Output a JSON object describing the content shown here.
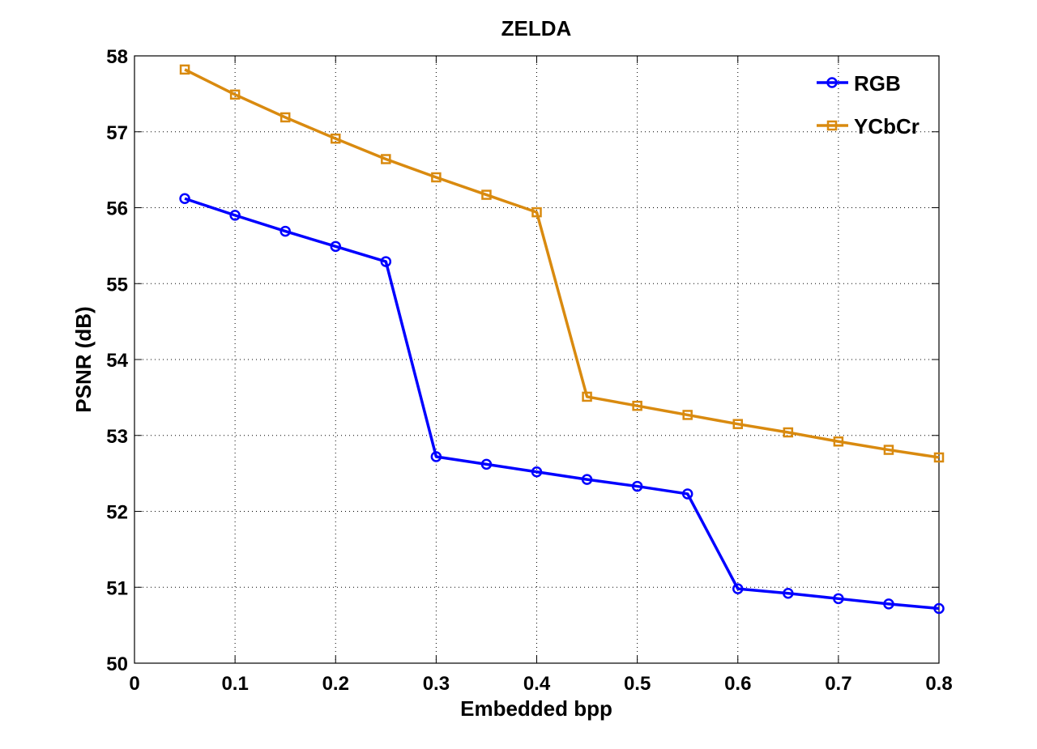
{
  "chart_data": {
    "type": "line",
    "title": "ZELDA",
    "xlabel": "Embedded bpp",
    "ylabel": "PSNR (dB)",
    "xlim": [
      0,
      0.8
    ],
    "ylim": [
      50,
      58
    ],
    "xticks": [
      "0",
      "0.1",
      "0.2",
      "0.3",
      "0.4",
      "0.5",
      "0.6",
      "0.7",
      "0.8"
    ],
    "yticks": [
      "50",
      "51",
      "52",
      "53",
      "54",
      "55",
      "56",
      "57",
      "58"
    ],
    "grid": true,
    "legend_position": "top-right",
    "x": [
      0.05,
      0.1,
      0.15,
      0.2,
      0.25,
      0.3,
      0.35,
      0.4,
      0.45,
      0.5,
      0.55,
      0.6,
      0.65,
      0.7,
      0.75,
      0.8
    ],
    "series": [
      {
        "name": "RGB",
        "color": "#0000ff",
        "marker": "circle",
        "values": [
          56.12,
          55.9,
          55.69,
          55.49,
          55.29,
          52.72,
          52.62,
          52.52,
          52.42,
          52.33,
          52.23,
          50.98,
          50.92,
          50.85,
          50.78,
          50.72
        ]
      },
      {
        "name": "YCbCr",
        "color": "#d98a0f",
        "marker": "square",
        "values": [
          57.82,
          57.49,
          57.19,
          56.91,
          56.64,
          56.4,
          56.17,
          55.94,
          53.51,
          53.39,
          53.27,
          53.15,
          53.04,
          52.92,
          52.81,
          52.71
        ]
      }
    ]
  }
}
